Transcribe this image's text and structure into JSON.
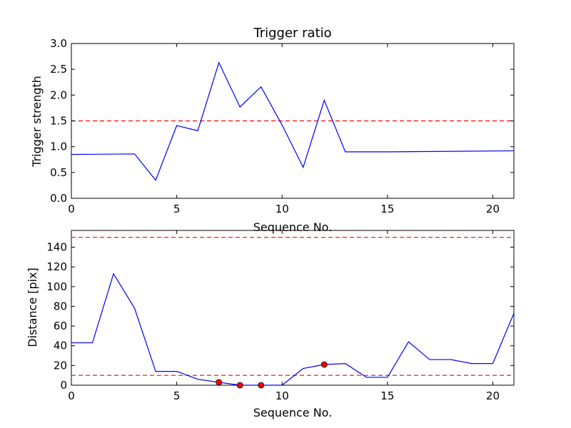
{
  "chart_data": [
    {
      "type": "line",
      "title": "Trigger ratio",
      "xlabel": "Sequence No.",
      "ylabel": "Trigger strength",
      "xlim": [
        0,
        21
      ],
      "ylim": [
        0,
        3.0
      ],
      "grid": false,
      "x_ticks": [
        "0",
        "5",
        "10",
        "15",
        "20"
      ],
      "y_ticks": [
        "0.0",
        "0.5",
        "1.0",
        "1.5",
        "2.0",
        "2.5",
        "3.0"
      ],
      "series": [
        {
          "color": "#0000ff",
          "x": [
            0,
            3,
            4,
            5,
            6,
            7,
            8,
            9,
            10,
            11,
            12,
            13,
            15,
            21
          ],
          "y": [
            0.85,
            0.86,
            0.35,
            1.41,
            1.31,
            2.63,
            1.77,
            2.16,
            1.42,
            0.6,
            1.9,
            0.9,
            0.9,
            0.92
          ]
        }
      ],
      "reference_lines": [
        {
          "y": 1.5,
          "color": "#ff0000",
          "style": "dashed"
        }
      ]
    },
    {
      "type": "line",
      "title": "",
      "xlabel": "Sequence No.",
      "ylabel": "Distance [pix]",
      "xlim": [
        0,
        21
      ],
      "ylim": [
        0,
        157
      ],
      "grid": false,
      "x_ticks": [
        "0",
        "5",
        "10",
        "15",
        "20"
      ],
      "y_ticks": [
        "0",
        "20",
        "40",
        "60",
        "80",
        "100",
        "120",
        "140"
      ],
      "series": [
        {
          "color": "#0000ff",
          "x": [
            0,
            1,
            2,
            3,
            4,
            5,
            6,
            7,
            8,
            9,
            10,
            11,
            12,
            13,
            14,
            15,
            16,
            17,
            18,
            19,
            20,
            21
          ],
          "y": [
            43,
            43,
            113,
            78,
            14,
            14,
            6,
            3,
            0,
            0,
            0,
            17,
            21,
            22,
            8,
            8,
            44,
            26,
            26,
            22,
            22,
            73
          ]
        }
      ],
      "markers": {
        "color": "#ff0000",
        "x": [
          7,
          8,
          9,
          12
        ],
        "y": [
          3,
          0,
          0,
          21
        ]
      },
      "reference_lines": [
        {
          "y": 150,
          "color": "#ff0000",
          "style": "dashed"
        },
        {
          "y": 10,
          "color": "#ff0000",
          "style": "dashed"
        }
      ]
    }
  ]
}
